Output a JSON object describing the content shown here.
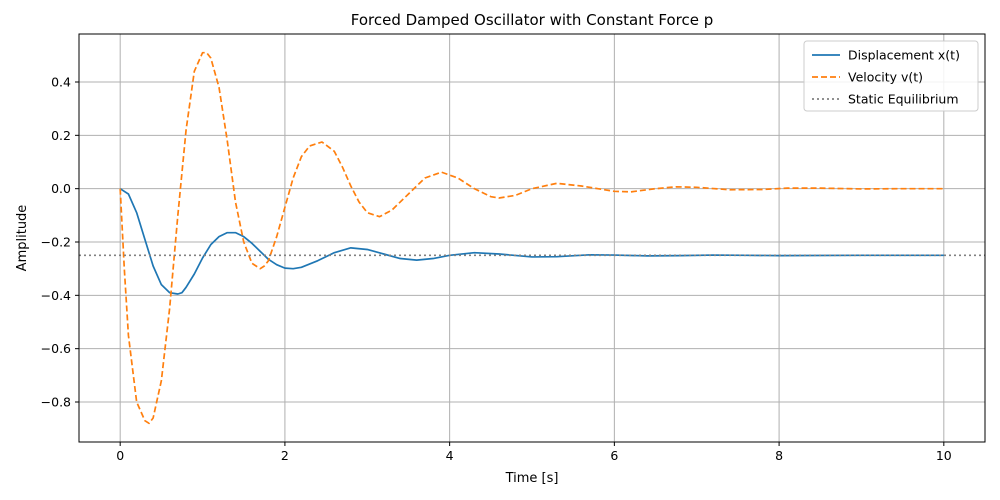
{
  "chart_data": {
    "type": "line",
    "title": "Forced Damped Oscillator with Constant Force p",
    "xlabel": "Time [s]",
    "ylabel": "Amplitude",
    "xlim": [
      -0.5,
      10.5
    ],
    "ylim": [
      -0.95,
      0.58
    ],
    "xticks": [
      0,
      2,
      4,
      6,
      8,
      10
    ],
    "yticks": [
      -0.8,
      -0.6,
      -0.4,
      -0.2,
      0.0,
      0.2,
      0.4
    ],
    "xtick_labels": [
      "0",
      "2",
      "4",
      "6",
      "8",
      "10"
    ],
    "ytick_labels": [
      "−0.8",
      "−0.6",
      "−0.4",
      "−0.2",
      "0.0",
      "0.2",
      "0.4"
    ],
    "grid": true,
    "legend_position": "top-right",
    "series": [
      {
        "name": "Displacement x(t)",
        "color": "#1f77b4",
        "style": "solid",
        "x": [
          0,
          0.1,
          0.2,
          0.3,
          0.4,
          0.5,
          0.6,
          0.7,
          0.75,
          0.8,
          0.9,
          1.0,
          1.1,
          1.2,
          1.3,
          1.4,
          1.5,
          1.6,
          1.7,
          1.8,
          1.9,
          2.0,
          2.1,
          2.2,
          2.4,
          2.6,
          2.8,
          3.0,
          3.2,
          3.4,
          3.6,
          3.8,
          4.0,
          4.3,
          4.6,
          5.0,
          5.3,
          5.7,
          6.0,
          6.4,
          6.8,
          7.2,
          7.6,
          8.0,
          9.0,
          10.0
        ],
        "y": [
          0.0,
          -0.02,
          -0.09,
          -0.19,
          -0.29,
          -0.36,
          -0.39,
          -0.395,
          -0.39,
          -0.37,
          -0.32,
          -0.26,
          -0.21,
          -0.18,
          -0.165,
          -0.165,
          -0.18,
          -0.205,
          -0.235,
          -0.265,
          -0.285,
          -0.298,
          -0.3,
          -0.295,
          -0.27,
          -0.24,
          -0.222,
          -0.228,
          -0.245,
          -0.262,
          -0.268,
          -0.262,
          -0.25,
          -0.24,
          -0.245,
          -0.256,
          -0.255,
          -0.248,
          -0.249,
          -0.252,
          -0.251,
          -0.249,
          -0.25,
          -0.251,
          -0.25,
          -0.25
        ]
      },
      {
        "name": "Velocity v(t)",
        "color": "#ff7f0e",
        "style": "dashed",
        "x": [
          0,
          0.05,
          0.1,
          0.2,
          0.3,
          0.35,
          0.4,
          0.5,
          0.6,
          0.7,
          0.8,
          0.9,
          1.0,
          1.05,
          1.1,
          1.2,
          1.3,
          1.4,
          1.5,
          1.6,
          1.7,
          1.75,
          1.8,
          1.9,
          2.0,
          2.1,
          2.2,
          2.3,
          2.45,
          2.6,
          2.7,
          2.8,
          2.9,
          3.0,
          3.15,
          3.3,
          3.5,
          3.7,
          3.9,
          4.1,
          4.3,
          4.5,
          4.6,
          4.8,
          5.0,
          5.3,
          5.6,
          5.8,
          6.0,
          6.2,
          6.5,
          6.75,
          7.0,
          7.4,
          7.8,
          8.1,
          8.5,
          9.0,
          9.5,
          10.0
        ],
        "y": [
          0.0,
          -0.3,
          -0.55,
          -0.8,
          -0.87,
          -0.88,
          -0.86,
          -0.72,
          -0.45,
          -0.1,
          0.22,
          0.44,
          0.51,
          0.51,
          0.49,
          0.38,
          0.18,
          -0.05,
          -0.2,
          -0.28,
          -0.3,
          -0.29,
          -0.27,
          -0.18,
          -0.07,
          0.04,
          0.12,
          0.16,
          0.175,
          0.14,
          0.08,
          0.01,
          -0.05,
          -0.09,
          -0.105,
          -0.08,
          -0.02,
          0.04,
          0.062,
          0.04,
          0.0,
          -0.03,
          -0.035,
          -0.025,
          0.0,
          0.02,
          0.01,
          0.0,
          -0.01,
          -0.012,
          0.0,
          0.007,
          0.005,
          -0.004,
          -0.003,
          0.002,
          0.002,
          -0.001,
          0.0,
          0.0
        ]
      },
      {
        "name": "Static Equilibrium",
        "color": "#808080",
        "style": "dotted",
        "constant_y": -0.25
      }
    ]
  }
}
